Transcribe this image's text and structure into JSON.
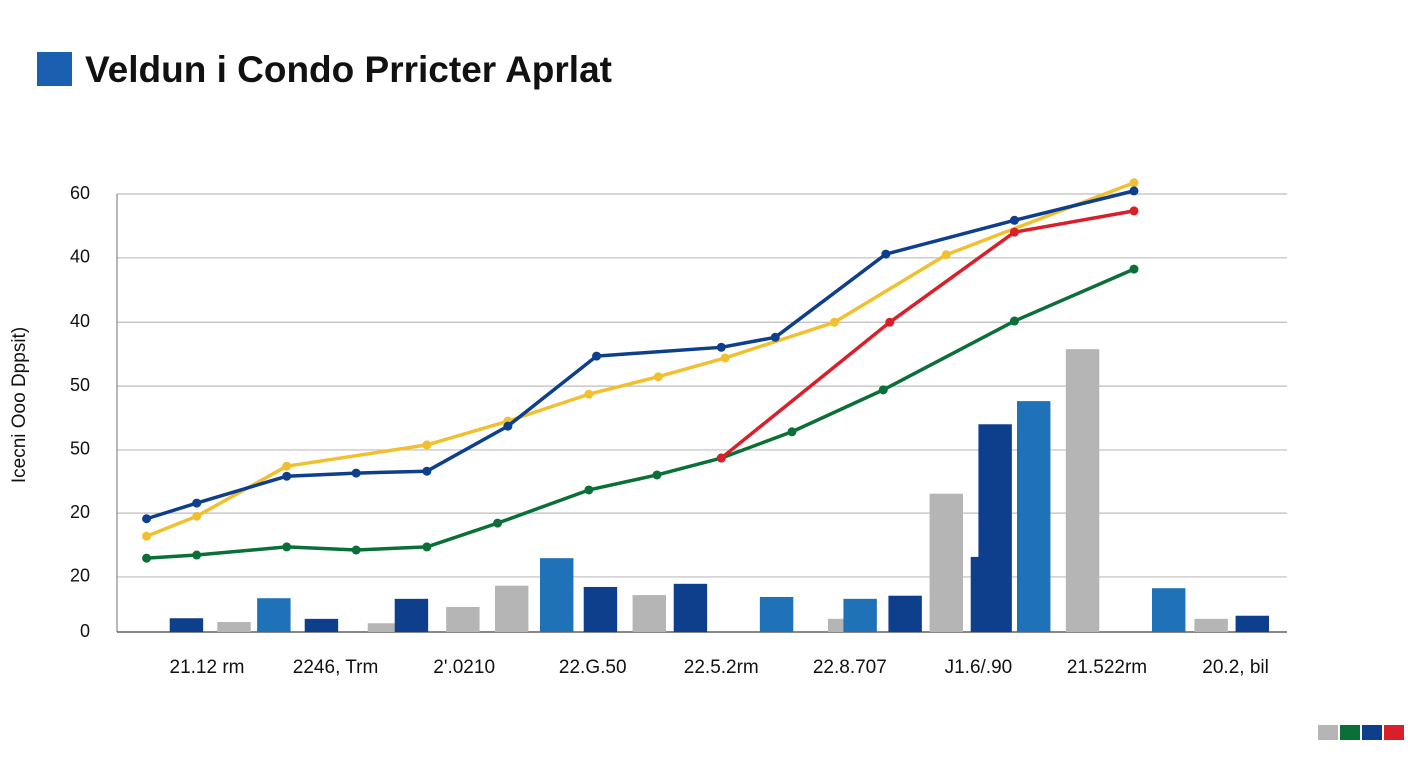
{
  "chart_data": {
    "type": "combo",
    "title": "Veldun i Condo Prricter Aprlat",
    "y_label": "Icecni Ooo Dppsit)",
    "xlim": [
      0.3,
      9.4
    ],
    "xticks": [
      {
        "value": 1,
        "label": "21.12 rm"
      },
      {
        "value": 2,
        "label": "2246, Trm"
      },
      {
        "value": 3,
        "label": "2'.0210"
      },
      {
        "value": 4,
        "label": "22.G.50"
      },
      {
        "value": 5,
        "label": "22.5.2rm"
      },
      {
        "value": 6,
        "label": "22.8.707"
      },
      {
        "value": 7,
        "label": "J1.6/.90"
      },
      {
        "value": 8,
        "label": "21.522rm"
      },
      {
        "value": 9,
        "label": "20.2, bil"
      }
    ],
    "ylim": [
      0,
      72
    ],
    "yticks": [
      0,
      {
        "value": 8.8,
        "label": "20"
      },
      {
        "value": 19,
        "label": "20"
      },
      {
        "value": 29.1,
        "label": "50"
      },
      {
        "value": 39.3,
        "label": "50"
      },
      {
        "value": 49.5,
        "label": "40"
      },
      {
        "value": 59.8,
        "label": "40"
      },
      {
        "value": 70,
        "label": "60"
      }
    ],
    "grid": true,
    "legend": {
      "position": "bottom-right",
      "colors": [
        "#b5b5b5",
        "#0a7038",
        "#0d3f8c",
        "#d9202a"
      ]
    },
    "series": [
      {
        "type": "bar",
        "color": "#b5b5b5",
        "x": [
          1.21,
          2.38,
          2.99,
          3.37,
          4.44,
          5.96,
          6.75,
          7.81,
          8.81
        ],
        "values": [
          1.6,
          1.4,
          4.0,
          7.4,
          5.9,
          2.1,
          22.1,
          45.2,
          2.1
        ]
      },
      {
        "type": "bar",
        "color": "#1f72b8",
        "x": [
          1.52,
          3.72,
          5.43,
          6.08,
          7.43,
          8.48
        ],
        "values": [
          5.4,
          11.8,
          5.6,
          5.3,
          36.9,
          7.0
        ]
      },
      {
        "type": "bar",
        "color": "#0d3f8c",
        "x": [
          0.84,
          1.89,
          2.59,
          4.06,
          4.76,
          6.43,
          7.07,
          7.13,
          9.13
        ],
        "values": [
          2.2,
          2.1,
          5.3,
          7.2,
          7.7,
          5.8,
          12.0,
          33.2,
          2.6
        ]
      },
      {
        "type": "line",
        "color": "#0a7038",
        "x": [
          0.53,
          0.92,
          1.62,
          2.16,
          2.71,
          3.26,
          3.97,
          4.5,
          5.0,
          5.55,
          6.26,
          7.28,
          8.21
        ],
        "values": [
          11.8,
          12.3,
          13.6,
          13.1,
          13.6,
          17.4,
          22.7,
          25.1,
          27.8,
          32.0,
          38.7,
          49.7,
          58.0
        ]
      },
      {
        "type": "line",
        "color": "#f0c030",
        "x": [
          0.53,
          0.92,
          1.62,
          2.71,
          3.34,
          3.97,
          4.51,
          5.03,
          5.88,
          6.75,
          8.21
        ],
        "values": [
          15.3,
          18.5,
          26.5,
          29.9,
          33.7,
          38.0,
          40.8,
          43.8,
          49.5,
          60.3,
          71.8
        ]
      },
      {
        "type": "line",
        "color": "#0d3f8c",
        "x": [
          0.53,
          0.92,
          1.62,
          2.16,
          2.71,
          3.34,
          4.03,
          5.0,
          5.42,
          6.28,
          7.28,
          8.21
        ],
        "values": [
          18.1,
          20.6,
          24.9,
          25.4,
          25.7,
          32.9,
          44.1,
          45.5,
          47.1,
          60.4,
          65.8,
          70.5
        ]
      },
      {
        "type": "line",
        "color": "#d9202a",
        "x": [
          5.0,
          6.31,
          7.28,
          8.21
        ],
        "values": [
          27.8,
          49.5,
          63.9,
          67.3
        ]
      }
    ]
  }
}
